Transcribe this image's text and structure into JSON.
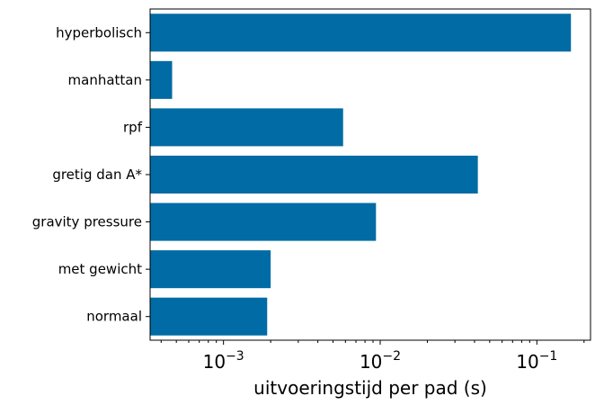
{
  "chart_data": {
    "type": "bar",
    "orientation": "horizontal",
    "categories": [
      "hyperbolisch",
      "manhattan",
      "rpf",
      "gretig dan A*",
      "gravity pressure",
      "met gewicht",
      "normaal"
    ],
    "values": [
      0.165,
      0.00047,
      0.0058,
      0.042,
      0.0094,
      0.002,
      0.0019
    ],
    "xlabel": "uitvoeringstijd per pad (s)",
    "ylabel": "",
    "title": "",
    "xscale": "log",
    "xlim": [
      0.00034,
      0.22
    ],
    "xticks": [
      {
        "value": 0.001,
        "base": "10",
        "exp": "−3"
      },
      {
        "value": 0.01,
        "base": "10",
        "exp": "−2"
      },
      {
        "value": 0.1,
        "base": "10",
        "exp": "−1"
      }
    ],
    "bar_color": "#006ba4",
    "grid": false,
    "legend": "none"
  }
}
